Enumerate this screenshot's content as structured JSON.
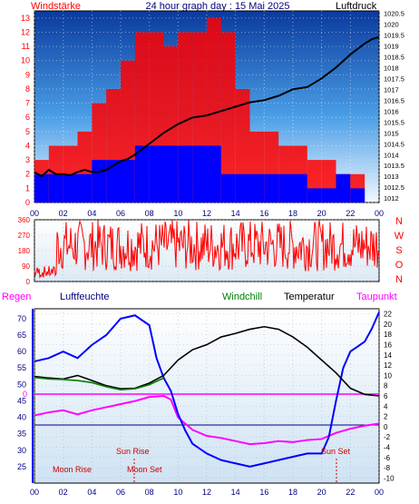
{
  "header": {
    "left_label": "Windstärke",
    "title": "24 hour graph day : 15 Mai 2025",
    "right_label": "Luftdruck"
  },
  "colors": {
    "wind": "#ff0000",
    "gust_bg": "#0000ff",
    "pressure": "#000000",
    "humidity": "#0000ff",
    "temperature": "#000000",
    "windchill": "#008000",
    "dewpoint": "#ff00ff",
    "rain": "#ff00ff",
    "axis_text": "#000080",
    "axis_red": "#ff0000"
  },
  "chart_data": [
    {
      "type": "bar",
      "name": "wind",
      "title": "24 hour graph day : 15 Mai 2025",
      "x_ticks": [
        "00",
        "02",
        "04",
        "06",
        "08",
        "10",
        "12",
        "14",
        "16",
        "18",
        "20",
        "22",
        "00"
      ],
      "y_left_ticks": [
        "0",
        "1",
        "2",
        "3",
        "4",
        "5",
        "6",
        "7",
        "8",
        "9",
        "10",
        "11",
        "12",
        "13"
      ],
      "y_right_ticks": [
        "1012",
        "1012.5",
        "1013",
        "1013.5",
        "1014",
        "1014.5",
        "1015",
        "1015.5",
        "1016",
        "1016.5",
        "1017",
        "1017.5",
        "1018",
        "1018.5",
        "1019",
        "1019.5",
        "1020",
        "1020.5"
      ],
      "ylim_left": [
        0,
        13.5
      ],
      "ylim_right": [
        1011.8,
        1020.6
      ],
      "x_hours": [
        0,
        2,
        4,
        6,
        8,
        10,
        12,
        14,
        16,
        18,
        20,
        22,
        24
      ],
      "wind_avg": [
        2,
        2,
        2,
        2,
        3,
        3,
        3,
        4,
        4,
        4,
        4,
        4,
        4,
        2,
        2,
        2,
        2,
        2,
        2,
        1,
        1,
        2,
        1,
        0
      ],
      "wind_gust": [
        3,
        4,
        4,
        5,
        7,
        8,
        10,
        12,
        12,
        11,
        12,
        12,
        13,
        12,
        8,
        5,
        5,
        4,
        4,
        3,
        3,
        2,
        2,
        0
      ],
      "pressure": [
        [
          0,
          1013.2
        ],
        [
          0.5,
          1013.0
        ],
        [
          1,
          1013.3
        ],
        [
          1.5,
          1013.1
        ],
        [
          2,
          1013.1
        ],
        [
          2.5,
          1013.05
        ],
        [
          3,
          1013.2
        ],
        [
          3.5,
          1013.3
        ],
        [
          4,
          1013.2
        ],
        [
          4.5,
          1013.2
        ],
        [
          5,
          1013.3
        ],
        [
          5.5,
          1013.5
        ],
        [
          6,
          1013.7
        ],
        [
          6.5,
          1013.8
        ],
        [
          7,
          1014.0
        ],
        [
          8,
          1014.5
        ],
        [
          9,
          1015.0
        ],
        [
          10,
          1015.4
        ],
        [
          11,
          1015.7
        ],
        [
          12,
          1015.8
        ],
        [
          13,
          1016.0
        ],
        [
          14,
          1016.2
        ],
        [
          15,
          1016.4
        ],
        [
          16,
          1016.5
        ],
        [
          17,
          1016.7
        ],
        [
          18,
          1017.0
        ],
        [
          19,
          1017.1
        ],
        [
          20,
          1017.5
        ],
        [
          21,
          1018.0
        ],
        [
          22,
          1018.6
        ],
        [
          23,
          1019.1
        ],
        [
          23.5,
          1019.3
        ],
        [
          24,
          1019.4
        ]
      ]
    },
    {
      "type": "line",
      "name": "wind_direction",
      "y_left_ticks": [
        "0",
        "90",
        "180",
        "270",
        "360"
      ],
      "y_right_ticks": [
        "N",
        "W",
        "S",
        "O",
        "N"
      ],
      "ylim": [
        0,
        360
      ],
      "x_ticks": [
        "00",
        "02",
        "04",
        "06",
        "08",
        "10",
        "12",
        "14",
        "16",
        "18",
        "20",
        "22",
        "00"
      ]
    },
    {
      "type": "line",
      "name": "climate",
      "labels": {
        "rain": "Regen",
        "humidity": "Luftfeuchte",
        "windchill": "Windchill",
        "temperature": "Temperatur",
        "dewpoint": "Taupunkt"
      },
      "rain_level_label": "0",
      "y_left_ticks": [
        "25",
        "30",
        "35",
        "40",
        "45",
        "50",
        "55",
        "60",
        "65",
        "70"
      ],
      "ylim_humidity": [
        20,
        73
      ],
      "y_right_ticks": [
        "-10",
        "-8",
        "-6",
        "-4",
        "-2",
        "0",
        "2",
        "4",
        "6",
        "8",
        "10",
        "12",
        "14",
        "16",
        "18",
        "20",
        "22"
      ],
      "ylim_temp": [
        -11,
        23
      ],
      "x_ticks": [
        "00",
        "02",
        "04",
        "06",
        "08",
        "10",
        "12",
        "14",
        "16",
        "18",
        "20",
        "22",
        "00"
      ],
      "annotations": {
        "sun_rise": "Sun Rise",
        "sun_set": "Sun Set",
        "moon_rise": "Moon Rise",
        "moon_set": "Moon Set"
      },
      "temperature": [
        [
          0,
          9.8
        ],
        [
          1,
          9.5
        ],
        [
          2,
          9.3
        ],
        [
          3,
          10
        ],
        [
          4,
          9.0
        ],
        [
          5,
          8.0
        ],
        [
          6,
          7.4
        ],
        [
          7,
          7.5
        ],
        [
          8,
          8.5
        ],
        [
          9,
          10
        ],
        [
          10,
          13
        ],
        [
          11,
          15
        ],
        [
          12,
          16
        ],
        [
          13,
          17.5
        ],
        [
          14,
          18.2
        ],
        [
          15,
          19
        ],
        [
          16,
          19.5
        ],
        [
          17,
          19
        ],
        [
          18,
          17.5
        ],
        [
          19,
          15.5
        ],
        [
          20,
          13
        ],
        [
          21,
          10.5
        ],
        [
          22,
          7.5
        ],
        [
          23,
          6.3
        ],
        [
          24,
          6.0
        ]
      ],
      "windchill": [
        [
          0,
          9.6
        ],
        [
          1,
          9.3
        ],
        [
          2,
          9.2
        ],
        [
          3,
          9.0
        ],
        [
          4,
          8.6
        ],
        [
          5,
          7.8
        ],
        [
          6,
          7.2
        ],
        [
          7,
          7.4
        ],
        [
          8,
          8.2
        ],
        [
          9,
          9.5
        ]
      ],
      "humidity": [
        [
          0,
          57
        ],
        [
          1,
          58
        ],
        [
          2,
          60
        ],
        [
          3,
          58
        ],
        [
          4,
          62
        ],
        [
          5,
          65
        ],
        [
          6,
          70
        ],
        [
          7,
          71
        ],
        [
          8,
          68
        ],
        [
          8.5,
          58
        ],
        [
          9,
          52
        ],
        [
          9.5,
          48
        ],
        [
          10,
          41
        ],
        [
          10.5,
          36
        ],
        [
          11,
          32
        ],
        [
          12,
          29
        ],
        [
          13,
          27
        ],
        [
          14,
          26
        ],
        [
          15,
          25
        ],
        [
          16,
          26
        ],
        [
          17,
          27
        ],
        [
          18,
          28
        ],
        [
          19,
          29
        ],
        [
          20,
          29
        ],
        [
          20.5,
          34
        ],
        [
          21,
          45
        ],
        [
          21.5,
          55
        ],
        [
          22,
          60
        ],
        [
          23,
          63
        ],
        [
          23.5,
          67
        ],
        [
          24,
          72
        ]
      ],
      "dewpoint": [
        [
          0,
          2.2
        ],
        [
          1,
          2.8
        ],
        [
          2,
          3.2
        ],
        [
          3,
          2.4
        ],
        [
          4,
          3.2
        ],
        [
          5,
          3.8
        ],
        [
          6,
          4.4
        ],
        [
          7,
          5.0
        ],
        [
          8,
          5.8
        ],
        [
          9,
          6.0
        ],
        [
          9.5,
          5.3
        ],
        [
          10,
          1.8
        ],
        [
          11,
          -0.6
        ],
        [
          12,
          -1.8
        ],
        [
          13,
          -2.2
        ],
        [
          14,
          -2.8
        ],
        [
          15,
          -3.4
        ],
        [
          16,
          -3.2
        ],
        [
          17,
          -2.8
        ],
        [
          18,
          -3.0
        ],
        [
          19,
          -2.6
        ],
        [
          20,
          -2.4
        ],
        [
          21,
          -1.2
        ],
        [
          22,
          -0.4
        ],
        [
          23,
          0.2
        ],
        [
          24,
          0.6
        ]
      ]
    }
  ]
}
